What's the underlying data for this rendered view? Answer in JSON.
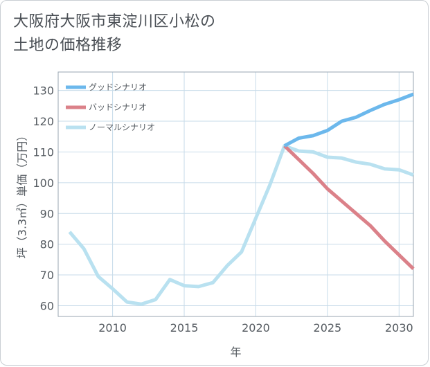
{
  "title_lines": [
    "大阪府大阪市東淀川区小松の",
    "土地の価格推移"
  ],
  "chart_data": {
    "type": "line",
    "xlabel": "年",
    "ylabel": "坪（3.3㎡）単価（万円）",
    "xlim": [
      2006.2,
      2031
    ],
    "ylim": [
      56.5,
      136
    ],
    "x_ticks": [
      2010,
      2015,
      2020,
      2025,
      2030
    ],
    "y_ticks": [
      60,
      70,
      80,
      90,
      100,
      110,
      120,
      130
    ],
    "grid": true,
    "legend_position": "top-left",
    "series": [
      {
        "name": "グッドシナリオ",
        "color": "#6cb8ec",
        "x": [
          2022,
          2023,
          2024,
          2025,
          2026,
          2027,
          2028,
          2029,
          2030,
          2031
        ],
        "y": [
          112,
          114.5,
          115.3,
          117,
          120,
          121.3,
          123.5,
          125.5,
          127,
          128.8
        ]
      },
      {
        "name": "バッドシナリオ",
        "color": "#db8189",
        "x": [
          2022,
          2023,
          2024,
          2025,
          2026,
          2027,
          2028,
          2029,
          2030,
          2031
        ],
        "y": [
          112,
          107.5,
          103,
          98,
          94,
          90,
          86,
          81,
          76.5,
          72
        ]
      },
      {
        "name": "ノーマルシナリオ",
        "color": "#b9e1f0",
        "x": [
          2007,
          2008,
          2009,
          2010,
          2011,
          2012,
          2013,
          2014,
          2015,
          2016,
          2017,
          2018,
          2019,
          2020,
          2021,
          2022,
          2023,
          2024,
          2025,
          2026,
          2027,
          2028,
          2029,
          2030,
          2031
        ],
        "y": [
          84,
          78.5,
          69.5,
          65.5,
          61.2,
          60.5,
          62,
          68.5,
          66.5,
          66.2,
          67.5,
          73,
          77.5,
          88.5,
          99.5,
          112,
          110.3,
          110,
          108.3,
          108,
          106.7,
          106,
          104.5,
          104.2,
          102.5
        ]
      }
    ]
  }
}
